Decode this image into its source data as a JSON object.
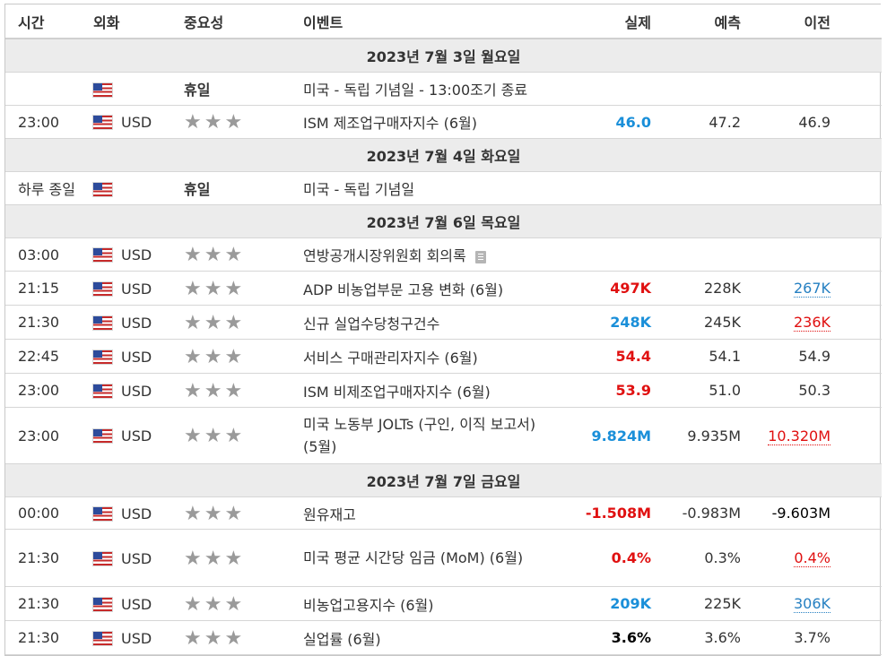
{
  "headers": {
    "time": "시간",
    "currency": "외화",
    "importance": "중요성",
    "event": "이벤트",
    "actual": "실제",
    "forecast": "예측",
    "previous": "이전"
  },
  "days": [
    {
      "label": "2023년 7월 3일 월요일"
    },
    {
      "label": "2023년 7월 4일 화요일"
    },
    {
      "label": "2023년 7월 6일 목요일"
    },
    {
      "label": "2023년 7월 7일 금요일"
    }
  ],
  "rows": [
    {
      "time": "",
      "currency": "",
      "holiday": "휴일",
      "event": "미국 - 독립 기념일 - 13:00조기 종료",
      "actual": "",
      "forecast": "",
      "previous": ""
    },
    {
      "time": "23:00",
      "currency": "USD",
      "stars": "★★★",
      "event": "ISM 제조업구매자지수 (6월)",
      "actual": "46.0",
      "actual_color": "#1a8fd9",
      "forecast": "47.2",
      "previous": "46.9"
    },
    {
      "time": "하루 종일",
      "currency": "",
      "holiday": "휴일",
      "event": "미국 - 독립 기념일",
      "actual": "",
      "forecast": "",
      "previous": ""
    },
    {
      "time": "03:00",
      "currency": "USD",
      "stars": "★★★",
      "event": "연방공개시장위원회 회의록",
      "actual": "",
      "forecast": "",
      "previous": ""
    },
    {
      "time": "21:15",
      "currency": "USD",
      "stars": "★★★",
      "event": "ADP 비농업부문 고용 변화 (6월)",
      "actual": "497K",
      "actual_color": "#e01010",
      "forecast": "228K",
      "previous": "267K",
      "previous_color": "#2680c2"
    },
    {
      "time": "21:30",
      "currency": "USD",
      "stars": "★★★",
      "event": "신규 실업수당청구건수",
      "actual": "248K",
      "actual_color": "#1a8fd9",
      "forecast": "245K",
      "previous": "236K",
      "previous_color": "#e01010"
    },
    {
      "time": "22:45",
      "currency": "USD",
      "stars": "★★★",
      "event": "서비스 구매관리자지수 (6월)",
      "actual": "54.4",
      "actual_color": "#e01010",
      "forecast": "54.1",
      "previous": "54.9"
    },
    {
      "time": "23:00",
      "currency": "USD",
      "stars": "★★★",
      "event": "ISM 비제조업구매자지수 (6월)",
      "actual": "53.9",
      "actual_color": "#e01010",
      "forecast": "51.0",
      "previous": "50.3"
    },
    {
      "time": "23:00",
      "currency": "USD",
      "stars": "★★★",
      "event": "미국 노동부 JOLTs (구인, 이직 보고서) (5월)",
      "actual": "9.824M",
      "actual_color": "#1a8fd9",
      "forecast": "9.935M",
      "previous": "10.320M",
      "previous_color": "#e01010"
    },
    {
      "time": "00:00",
      "currency": "USD",
      "stars": "★★★",
      "event": "원유재고",
      "actual": "-1.508M",
      "actual_color": "#e01010",
      "forecast": "-0.983M",
      "previous": "-9.603M"
    },
    {
      "time": "21:30",
      "currency": "USD",
      "stars": "★★★",
      "event": "미국 평균 시간당 임금 (MoM) (6월)",
      "actual": "0.4%",
      "actual_color": "#e01010",
      "forecast": "0.3%",
      "previous": "0.4%",
      "previous_color": "#e01010"
    },
    {
      "time": "21:30",
      "currency": "USD",
      "stars": "★★★",
      "event": "비농업고용지수 (6월)",
      "actual": "209K",
      "actual_color": "#1a8fd9",
      "forecast": "225K",
      "previous": "306K",
      "previous_color": "#2680c2"
    },
    {
      "time": "21:30",
      "currency": "USD",
      "stars": "★★★",
      "event": "실업률 (6월)",
      "actual": "3.6%",
      "actual_color": "#000000",
      "forecast": "3.6%",
      "previous": "3.7%"
    }
  ],
  "icons": {
    "flag": "us-flag-icon",
    "star": "star-icon",
    "document": "document-icon"
  }
}
